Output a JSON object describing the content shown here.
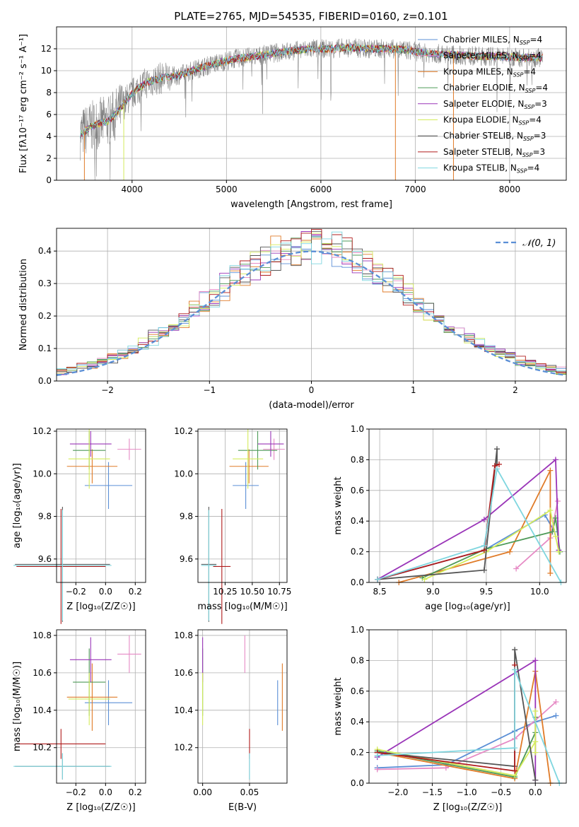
{
  "title": "PLATE=2765, MJD=54535, FIBERID=0160, z=0.101",
  "colors": {
    "Chabrier MILES": "#5b8fd6",
    "Salpeter MILES": "#e68ac5",
    "Kroupa MILES": "#e07b28",
    "Chabrier ELODIE": "#4e9a58",
    "Salpeter ELODIE": "#9a35b8",
    "Kroupa ELODIE": "#d4ec5c",
    "Chabrier STELIB": "#555555",
    "Salpeter STELIB": "#b01c1c",
    "Kroupa STELIB": "#7fd6df",
    "data": "#808080",
    "gauss": "#5b8fd6",
    "grid": "#b0b0b0"
  },
  "chart_data": [
    {
      "id": "spectrum",
      "type": "line",
      "title": "PLATE=2765, MJD=54535, FIBERID=0160, z=0.101",
      "xlabel": "wavelength [Angstrom, rest frame]",
      "ylabel": "Flux [fλ10⁻¹⁷ erg cm⁻² s⁻¹ A⁻¹]",
      "xlim": [
        3200,
        8600
      ],
      "ylim": [
        0,
        14
      ],
      "xticks": [
        4000,
        5000,
        6000,
        7000,
        8000
      ],
      "yticks": [
        0,
        2,
        4,
        6,
        8,
        10,
        12
      ],
      "continuum": [
        [
          3450,
          4.2
        ],
        [
          3550,
          4.8
        ],
        [
          3650,
          5.2
        ],
        [
          3750,
          5.4
        ],
        [
          3850,
          6.3
        ],
        [
          3950,
          7.4
        ],
        [
          4050,
          8.3
        ],
        [
          4150,
          8.9
        ],
        [
          4300,
          9.3
        ],
        [
          4500,
          9.6
        ],
        [
          4700,
          10.2
        ],
        [
          4900,
          10.7
        ],
        [
          5100,
          11.1
        ],
        [
          5300,
          11.3
        ],
        [
          5500,
          11.6
        ],
        [
          5700,
          11.8
        ],
        [
          5900,
          12.0
        ],
        [
          6100,
          12.0
        ],
        [
          6300,
          12.1
        ],
        [
          6500,
          12.0
        ],
        [
          6700,
          12.0
        ],
        [
          6900,
          11.9
        ],
        [
          7100,
          11.6
        ],
        [
          7300,
          11.5
        ],
        [
          7500,
          11.4
        ],
        [
          7700,
          11.3
        ],
        [
          7900,
          11.3
        ],
        [
          8100,
          11.2
        ],
        [
          8350,
          11.2
        ]
      ],
      "legend_position": "upper right",
      "legend": [
        "Chabrier MILES, N_SSP=4",
        "Salpeter MILES, N_SSP=4",
        "Kroupa MILES, N_SSP=4",
        "Chabrier ELODIE, N_SSP=4",
        "Salpeter ELODIE, N_SSP=3",
        "Kroupa ELODIE, N_SSP=4",
        "Chabrier STELIB, N_SSP=3",
        "Salpeter STELIB, N_SSP=3",
        "Kroupa STELIB, N_SSP=4"
      ]
    },
    {
      "id": "residuals",
      "type": "histogram",
      "xlabel": "(data-model)/error",
      "ylabel": "Normed distribution",
      "xlim": [
        -2.5,
        2.5
      ],
      "ylim": [
        0,
        0.47
      ],
      "xticks": [
        -2,
        -1,
        0,
        1,
        2
      ],
      "yticks": [
        0.0,
        0.1,
        0.2,
        0.3,
        0.4
      ],
      "bin_width": 0.1,
      "legend": "𝒩(0, 1)",
      "legend_position": "upper right"
    },
    {
      "id": "age_vs_Z",
      "type": "errorbar",
      "xlabel": "Z [log₁₀(Z/Z☉)]",
      "ylabel": "age  [log₁₀(age/yr)]",
      "xlim": [
        -0.33,
        0.27
      ],
      "ylim": [
        9.49,
        10.21
      ],
      "xticks": [
        -0.2,
        0.0,
        0.2
      ],
      "ytick_values": [
        9.6,
        9.8,
        10.0,
        10.2
      ],
      "points": [
        {
          "m": "Chabrier MILES",
          "x": 0.02,
          "xerr": 0.16,
          "y": 9.945,
          "yerr": 0.11
        },
        {
          "m": "Salpeter MILES",
          "x": 0.16,
          "xerr": 0.08,
          "y": 10.115,
          "yerr": 0.05
        },
        {
          "m": "Kroupa MILES",
          "x": -0.09,
          "xerr": 0.17,
          "y": 10.035,
          "yerr": 0.08
        },
        {
          "m": "Chabrier ELODIE",
          "x": -0.11,
          "xerr": 0.11,
          "y": 10.11,
          "yerr": 0.09
        },
        {
          "m": "Salpeter ELODIE",
          "x": -0.1,
          "xerr": 0.14,
          "y": 10.14,
          "yerr": 0.06
        },
        {
          "m": "Kroupa ELODIE",
          "x": -0.11,
          "xerr": 0.14,
          "y": 10.07,
          "yerr": 0.14
        },
        {
          "m": "Chabrier STELIB",
          "x": -0.29,
          "xerr": 0.32,
          "y": 9.575,
          "yerr": 0.27
        },
        {
          "m": "Salpeter STELIB",
          "x": -0.3,
          "xerr": 0.3,
          "y": 9.565,
          "yerr": 0.27
        },
        {
          "m": "Kroupa STELIB",
          "x": -0.29,
          "xerr": 0.33,
          "y": 9.57,
          "yerr": 0.26
        }
      ]
    },
    {
      "id": "age_vs_mass",
      "type": "errorbar",
      "xlabel": "mass [log₁₀(M/M☉)]",
      "xlim": [
        10.0,
        10.82
      ],
      "ylim": [
        9.49,
        10.21
      ],
      "xticks": [
        10.25,
        10.5,
        10.75
      ],
      "xtick_labels": [
        "10.25",
        "10.50",
        "10.75"
      ],
      "ytick_values": [
        9.6,
        9.8,
        10.0,
        10.2
      ],
      "points": [
        {
          "m": "Chabrier MILES",
          "x": 10.44,
          "xerr": 0.12,
          "y": 9.945,
          "yerr": 0.11
        },
        {
          "m": "Salpeter MILES",
          "x": 10.7,
          "xerr": 0.1,
          "y": 10.115,
          "yerr": 0.05
        },
        {
          "m": "Kroupa MILES",
          "x": 10.47,
          "xerr": 0.18,
          "y": 10.035,
          "yerr": 0.08
        },
        {
          "m": "Chabrier ELODIE",
          "x": 10.55,
          "xerr": 0.18,
          "y": 10.11,
          "yerr": 0.09
        },
        {
          "m": "Salpeter ELODIE",
          "x": 10.67,
          "xerr": 0.12,
          "y": 10.14,
          "yerr": 0.06
        },
        {
          "m": "Kroupa ELODIE",
          "x": 10.46,
          "xerr": 0.14,
          "y": 10.07,
          "yerr": 0.14
        },
        {
          "m": "Chabrier STELIB",
          "x": 10.1,
          "xerr": 0.07,
          "y": 9.575,
          "yerr": 0.27
        },
        {
          "m": "Salpeter STELIB",
          "x": 10.22,
          "xerr": 0.08,
          "y": 9.565,
          "yerr": 0.27
        },
        {
          "m": "Kroupa STELIB",
          "x": 10.1,
          "xerr": 0.07,
          "y": 9.57,
          "yerr": 0.26
        }
      ]
    },
    {
      "id": "weight_vs_age",
      "type": "line",
      "xlabel": "age  [log₁₀(age/yr)]",
      "ylabel": "mass weight",
      "xlim": [
        8.4,
        10.25
      ],
      "ylim": [
        0,
        1
      ],
      "xticks": [
        8.5,
        9.0,
        9.5,
        10.0
      ],
      "yticks": [
        0.0,
        0.2,
        0.4,
        0.6,
        0.8,
        1.0
      ],
      "series": [
        {
          "m": "Chabrier MILES",
          "pts": [
            [
              8.48,
              0.02
            ],
            [
              9.48,
              0.21
            ],
            [
              10.05,
              0.44
            ],
            [
              10.14,
              0.33
            ]
          ]
        },
        {
          "m": "Salpeter MILES",
          "pts": [
            [
              9.78,
              0.09
            ],
            [
              10.1,
              0.29
            ],
            [
              10.17,
              0.53
            ]
          ]
        },
        {
          "m": "Kroupa MILES",
          "pts": [
            [
              8.68,
              0.0
            ],
            [
              9.72,
              0.2
            ],
            [
              10.1,
              0.73
            ],
            [
              10.1,
              0.06
            ]
          ]
        },
        {
          "m": "Chabrier ELODIE",
          "pts": [
            [
              8.9,
              0.03
            ],
            [
              9.5,
              0.22
            ],
            [
              10.12,
              0.33
            ],
            [
              10.15,
              0.42
            ],
            [
              10.19,
              0.2
            ]
          ]
        },
        {
          "m": "Salpeter ELODIE",
          "pts": [
            [
              8.48,
              0.02
            ],
            [
              9.48,
              0.41
            ],
            [
              10.15,
              0.8
            ],
            [
              10.18,
              0.21
            ]
          ]
        },
        {
          "m": "Kroupa ELODIE",
          "pts": [
            [
              8.92,
              0.02
            ],
            [
              9.5,
              0.2
            ],
            [
              10.1,
              0.47
            ],
            [
              10.15,
              0.3
            ],
            [
              10.18,
              0.2
            ]
          ]
        },
        {
          "m": "Chabrier STELIB",
          "pts": [
            [
              8.48,
              0.02
            ],
            [
              9.48,
              0.08
            ],
            [
              9.6,
              0.87
            ],
            [
              9.6,
              0.77
            ]
          ]
        },
        {
          "m": "Salpeter STELIB",
          "pts": [
            [
              8.48,
              0.02
            ],
            [
              9.48,
              0.21
            ],
            [
              9.58,
              0.76
            ],
            [
              9.62,
              0.77
            ]
          ]
        },
        {
          "m": "Kroupa STELIB",
          "pts": [
            [
              8.48,
              0.02
            ],
            [
              9.48,
              0.24
            ],
            [
              9.6,
              0.74
            ],
            [
              10.2,
              0.0
            ]
          ]
        }
      ]
    },
    {
      "id": "mass_vs_Z",
      "type": "errorbar",
      "xlabel": "Z [log₁₀(Z/Z☉)]",
      "ylabel": "mass [log₁₀(M/M☉)]",
      "xlim": [
        -0.33,
        0.27
      ],
      "ylim": [
        10.01,
        10.83
      ],
      "xticks": [
        -0.2,
        0.0,
        0.2
      ],
      "ytick_values": [
        10.2,
        10.4,
        10.6,
        10.8
      ],
      "points": [
        {
          "m": "Chabrier MILES",
          "x": 0.02,
          "xerr": 0.16,
          "y": 10.44,
          "yerr": 0.12
        },
        {
          "m": "Salpeter MILES",
          "x": 0.16,
          "xerr": 0.08,
          "y": 10.7,
          "yerr": 0.1
        },
        {
          "m": "Kroupa MILES",
          "x": -0.09,
          "xerr": 0.17,
          "y": 10.47,
          "yerr": 0.18
        },
        {
          "m": "Chabrier ELODIE",
          "x": -0.11,
          "xerr": 0.11,
          "y": 10.55,
          "yerr": 0.18
        },
        {
          "m": "Salpeter ELODIE",
          "x": -0.1,
          "xerr": 0.14,
          "y": 10.67,
          "yerr": 0.12
        },
        {
          "m": "Kroupa ELODIE",
          "x": -0.11,
          "xerr": 0.14,
          "y": 10.46,
          "yerr": 0.14
        },
        {
          "m": "Chabrier STELIB",
          "x": -0.29,
          "xerr": 0.32,
          "y": 10.1,
          "yerr": 0.07
        },
        {
          "m": "Salpeter STELIB",
          "x": -0.3,
          "xerr": 0.3,
          "y": 10.22,
          "yerr": 0.08
        },
        {
          "m": "Kroupa STELIB",
          "x": -0.29,
          "xerr": 0.33,
          "y": 10.1,
          "yerr": 0.07
        }
      ]
    },
    {
      "id": "mass_vs_ebv",
      "type": "errorbar",
      "xlabel": "E(B-V)",
      "xlim": [
        -0.005,
        0.09
      ],
      "ylim": [
        10.01,
        10.83
      ],
      "xticks": [
        0.0,
        0.05
      ],
      "xtick_labels": [
        "0.00",
        "0.05"
      ],
      "ytick_values": [
        10.2,
        10.4,
        10.6,
        10.8
      ],
      "points": [
        {
          "m": "Chabrier MILES",
          "x": 0.08,
          "xerr": 0.0,
          "y": 10.44,
          "yerr": 0.12
        },
        {
          "m": "Salpeter MILES",
          "x": 0.045,
          "xerr": 0.0,
          "y": 10.7,
          "yerr": 0.1
        },
        {
          "m": "Kroupa MILES",
          "x": 0.085,
          "xerr": 0.0,
          "y": 10.47,
          "yerr": 0.18
        },
        {
          "m": "Chabrier ELODIE",
          "x": 0.0,
          "xerr": 0.0,
          "y": 10.55,
          "yerr": 0.18
        },
        {
          "m": "Salpeter ELODIE",
          "x": 0.0,
          "xerr": 0.0,
          "y": 10.67,
          "yerr": 0.12
        },
        {
          "m": "Kroupa ELODIE",
          "x": 0.0,
          "xerr": 0.0,
          "y": 10.46,
          "yerr": 0.14
        },
        {
          "m": "Chabrier STELIB",
          "x": 0.05,
          "xerr": 0.0,
          "y": 10.1,
          "yerr": 0.07
        },
        {
          "m": "Salpeter STELIB",
          "x": 0.05,
          "xerr": 0.0,
          "y": 10.22,
          "yerr": 0.08
        },
        {
          "m": "Kroupa STELIB",
          "x": 0.05,
          "xerr": 0.0,
          "y": 10.1,
          "yerr": 0.07
        }
      ]
    },
    {
      "id": "weight_vs_Z",
      "type": "line",
      "xlabel": "Z [log₁₀(Z/Z☉)]",
      "ylabel": "mass weight",
      "xlim": [
        -2.42,
        0.45
      ],
      "ylim": [
        0,
        1
      ],
      "xticks": [
        -2.0,
        -1.5,
        -1.0,
        -0.5,
        0.0
      ],
      "yticks": [
        0.0,
        0.2,
        0.4,
        0.6,
        0.8,
        1.0
      ],
      "series": [
        {
          "m": "Chabrier MILES",
          "pts": [
            [
              -2.3,
              0.1
            ],
            [
              -1.3,
              0.12
            ],
            [
              -0.3,
              0.34
            ],
            [
              0.0,
              0.4
            ],
            [
              0.3,
              0.44
            ]
          ]
        },
        {
          "m": "Salpeter MILES",
          "pts": [
            [
              -2.3,
              0.09
            ],
            [
              -1.3,
              0.1
            ],
            [
              -0.3,
              0.29
            ],
            [
              0.3,
              0.53
            ]
          ]
        },
        {
          "m": "Kroupa MILES",
          "pts": [
            [
              -2.3,
              0.2
            ],
            [
              -0.3,
              0.03
            ],
            [
              0.0,
              0.73
            ],
            [
              0.22,
              0.0
            ]
          ]
        },
        {
          "m": "Chabrier ELODIE",
          "pts": [
            [
              -2.3,
              0.21
            ],
            [
              -0.3,
              0.04
            ],
            [
              0.0,
              0.33
            ],
            [
              0.0,
              0.43
            ]
          ]
        },
        {
          "m": "Salpeter ELODIE",
          "pts": [
            [
              -2.3,
              0.17
            ],
            [
              0.0,
              0.8
            ],
            [
              0.0,
              0.02
            ]
          ]
        },
        {
          "m": "Kroupa ELODIE",
          "pts": [
            [
              -2.3,
              0.22
            ],
            [
              -0.3,
              0.05
            ],
            [
              0.0,
              0.27
            ],
            [
              0.0,
              0.47
            ],
            [
              0.0,
              0.2
            ]
          ]
        },
        {
          "m": "Chabrier STELIB",
          "pts": [
            [
              -2.3,
              0.2
            ],
            [
              -0.3,
              0.11
            ],
            [
              -0.3,
              0.87
            ],
            [
              0.0,
              0.02
            ]
          ]
        },
        {
          "m": "Salpeter STELIB",
          "pts": [
            [
              -2.3,
              0.2
            ],
            [
              -0.3,
              0.08
            ],
            [
              -0.3,
              0.77
            ]
          ]
        },
        {
          "m": "Kroupa STELIB",
          "pts": [
            [
              -2.3,
              0.18
            ],
            [
              -0.3,
              0.23
            ],
            [
              -0.3,
              0.74
            ],
            [
              0.35,
              0.0
            ]
          ]
        }
      ]
    }
  ]
}
